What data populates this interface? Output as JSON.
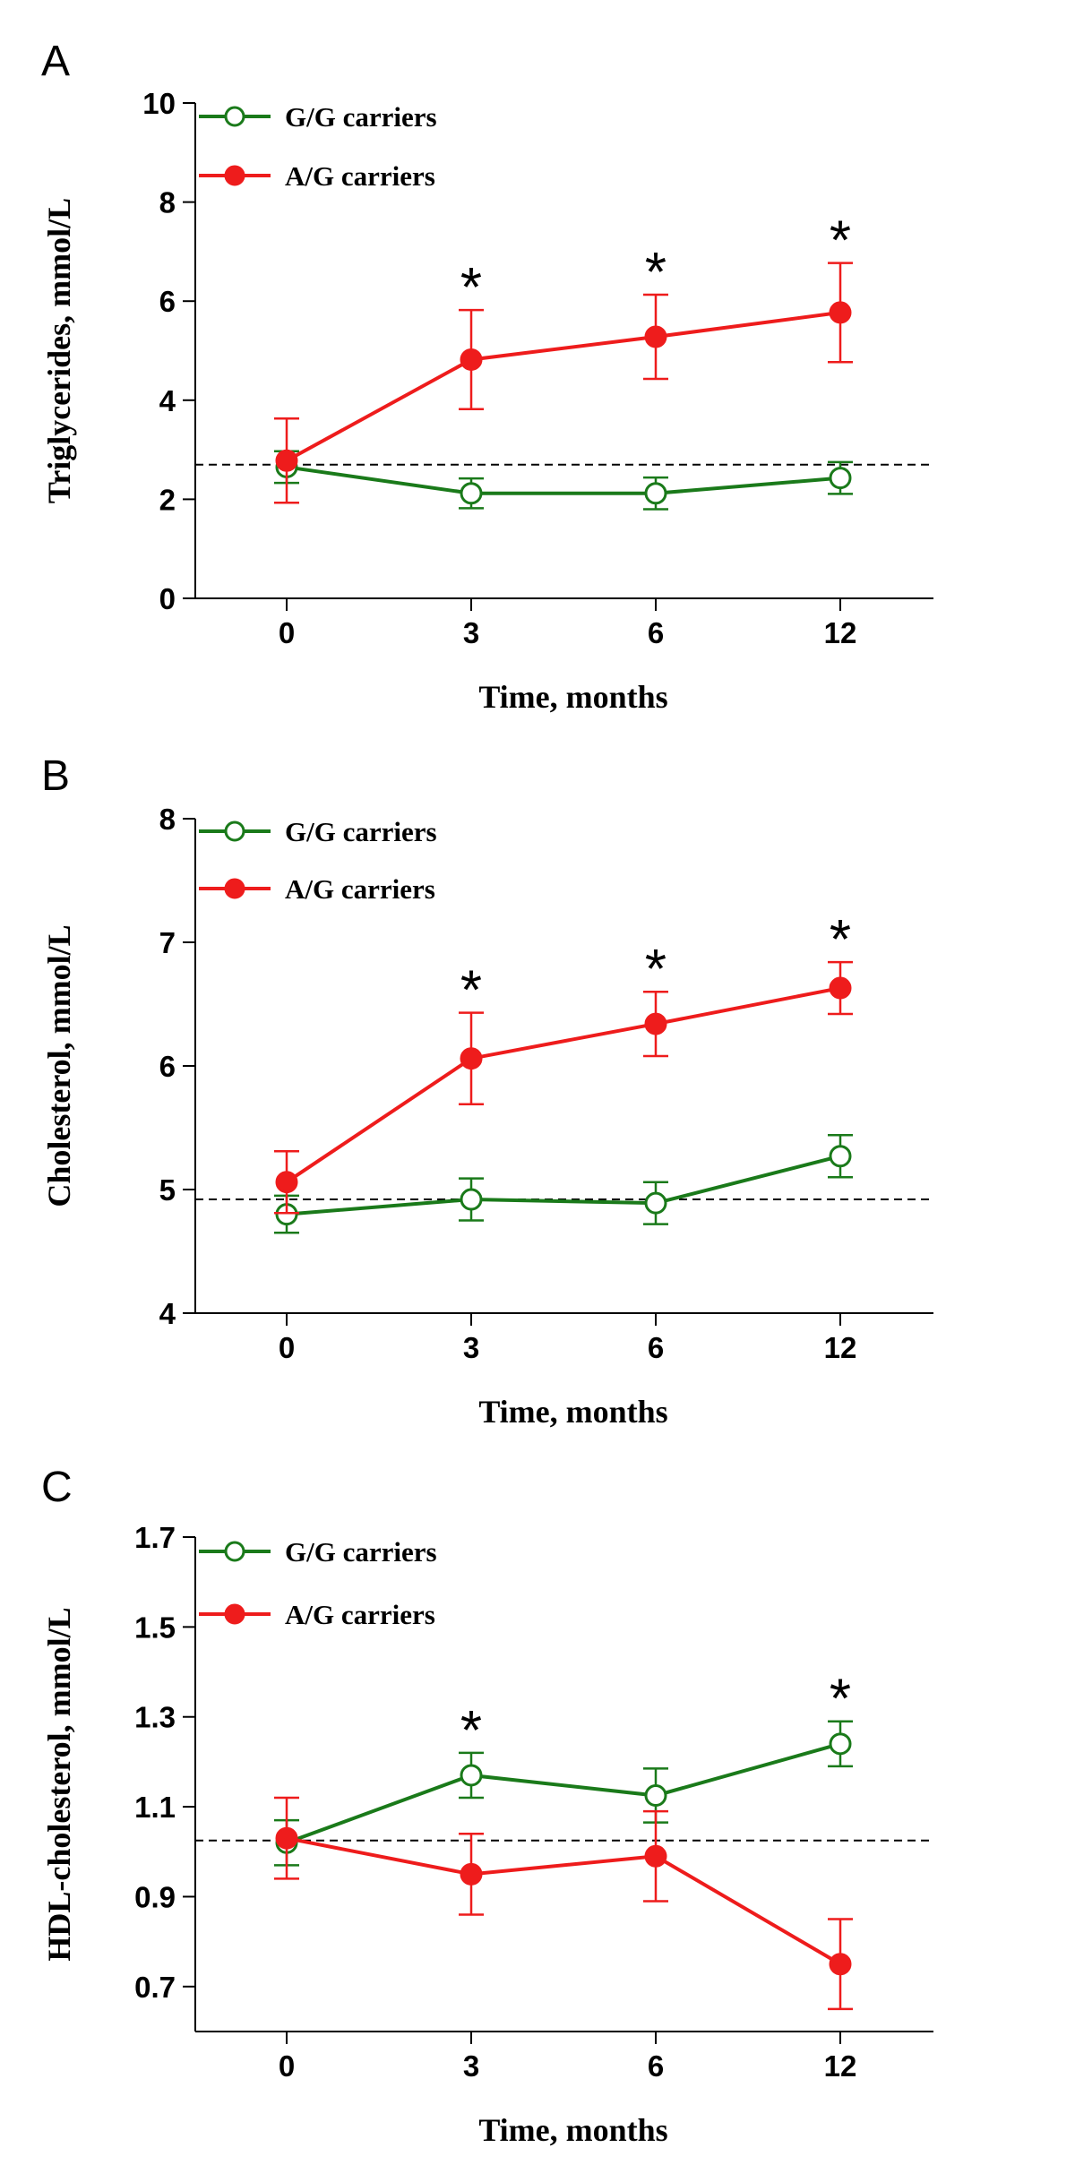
{
  "chart_data": [
    {
      "panel": "A",
      "type": "line",
      "xlabel": "Time, months",
      "ylabel": "Triglycerides, mmol/L",
      "categories": [
        "0",
        "3",
        "6",
        "12"
      ],
      "ylim": [
        0,
        10
      ],
      "yticks": [
        "0",
        "2",
        "4",
        "6",
        "8",
        "10"
      ],
      "reference_line": 2.7,
      "series": [
        {
          "name": "G/G carriers",
          "color": "#1a7a1a",
          "marker": "open-circle",
          "values": [
            2.65,
            2.12,
            2.12,
            2.43
          ],
          "errors": [
            0.32,
            0.3,
            0.32,
            0.32
          ]
        },
        {
          "name": "A/G carriers",
          "color": "#ee1c1c",
          "marker": "filled-circle",
          "values": [
            2.78,
            4.82,
            5.28,
            5.77
          ],
          "errors": [
            0.85,
            1.0,
            0.85,
            1.0
          ]
        }
      ],
      "significance_marks": [
        {
          "category": "3",
          "label": "*"
        },
        {
          "category": "6",
          "label": "*"
        },
        {
          "category": "12",
          "label": "*"
        }
      ]
    },
    {
      "panel": "B",
      "type": "line",
      "xlabel": "Time, months",
      "ylabel": "Cholesterol, mmol/L",
      "categories": [
        "0",
        "3",
        "6",
        "12"
      ],
      "ylim": [
        4,
        8
      ],
      "yticks": [
        "4",
        "5",
        "6",
        "7",
        "8"
      ],
      "reference_line": 4.92,
      "series": [
        {
          "name": "G/G carriers",
          "color": "#1a7a1a",
          "marker": "open-circle",
          "values": [
            4.8,
            4.92,
            4.89,
            5.27
          ],
          "errors": [
            0.15,
            0.17,
            0.17,
            0.17
          ]
        },
        {
          "name": "A/G carriers",
          "color": "#ee1c1c",
          "marker": "filled-circle",
          "values": [
            5.06,
            6.06,
            6.34,
            6.63
          ],
          "errors": [
            0.25,
            0.37,
            0.26,
            0.21
          ]
        }
      ],
      "significance_marks": [
        {
          "category": "3",
          "label": "*"
        },
        {
          "category": "6",
          "label": "*"
        },
        {
          "category": "12",
          "label": "*"
        }
      ]
    },
    {
      "panel": "C",
      "type": "line",
      "xlabel": "Time, months",
      "ylabel": "HDL-cholesterol, mmol/L",
      "categories": [
        "0",
        "3",
        "6",
        "12"
      ],
      "ylim": [
        0.6,
        1.7
      ],
      "yticks": [
        "0.7",
        "0.9",
        "1.1",
        "1.3",
        "1.5",
        "1.7"
      ],
      "reference_line": 1.025,
      "series": [
        {
          "name": "G/G carriers",
          "color": "#1a7a1a",
          "marker": "open-circle",
          "values": [
            1.02,
            1.17,
            1.125,
            1.24
          ],
          "errors": [
            0.05,
            0.05,
            0.06,
            0.05
          ]
        },
        {
          "name": "A/G carriers",
          "color": "#ee1c1c",
          "marker": "filled-circle",
          "values": [
            1.03,
            0.95,
            0.99,
            0.75
          ],
          "errors": [
            0.09,
            0.09,
            0.1,
            0.1
          ]
        }
      ],
      "significance_marks": [
        {
          "category": "3",
          "label": "*"
        },
        {
          "category": "12",
          "label": "*"
        }
      ]
    }
  ]
}
